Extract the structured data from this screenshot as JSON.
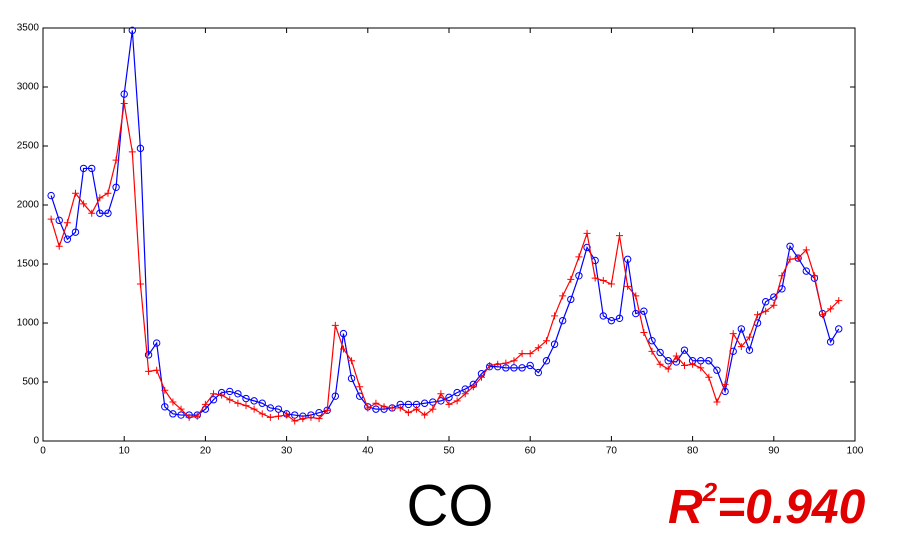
{
  "chart_data": {
    "type": "line",
    "x": [
      1,
      2,
      3,
      4,
      5,
      6,
      7,
      8,
      9,
      10,
      11,
      12,
      13,
      14,
      15,
      16,
      17,
      18,
      19,
      20,
      21,
      22,
      23,
      24,
      25,
      26,
      27,
      28,
      29,
      30,
      31,
      32,
      33,
      34,
      35,
      36,
      37,
      38,
      39,
      40,
      41,
      42,
      43,
      44,
      45,
      46,
      47,
      48,
      49,
      50,
      51,
      52,
      53,
      54,
      55,
      56,
      57,
      58,
      59,
      60,
      61,
      62,
      63,
      64,
      65,
      66,
      67,
      68,
      69,
      70,
      71,
      72,
      73,
      74,
      75,
      76,
      77,
      78,
      79,
      80,
      81,
      82,
      83,
      84,
      85,
      86,
      87,
      88,
      89,
      90,
      91,
      92,
      93,
      94,
      95,
      96,
      97,
      98
    ],
    "series": [
      {
        "color": "#0000ff",
        "marker": "circle",
        "values": [
          2080,
          1870,
          1710,
          1770,
          2310,
          2310,
          1930,
          1930,
          2150,
          2940,
          3480,
          2480,
          730,
          830,
          290,
          230,
          220,
          220,
          220,
          270,
          350,
          410,
          420,
          400,
          360,
          340,
          320,
          280,
          270,
          230,
          220,
          210,
          220,
          240,
          260,
          380,
          910,
          530,
          380,
          290,
          270,
          270,
          280,
          310,
          310,
          310,
          320,
          330,
          340,
          370,
          410,
          440,
          480,
          570,
          630,
          630,
          620,
          620,
          620,
          640,
          580,
          680,
          820,
          1020,
          1200,
          1400,
          1640,
          1530,
          1060,
          1020,
          1040,
          1540,
          1080,
          1100,
          850,
          750,
          680,
          670,
          770,
          680,
          680,
          680,
          600,
          420,
          760,
          950,
          770,
          1000,
          1180,
          1220,
          1290,
          1650,
          1550,
          1440,
          1380,
          1080,
          840,
          950
        ]
      },
      {
        "color": "#ff0000",
        "marker": "plus",
        "values": [
          1880,
          1650,
          1850,
          2100,
          2010,
          1930,
          2060,
          2100,
          2380,
          2860,
          2450,
          1330,
          590,
          600,
          430,
          330,
          270,
          200,
          210,
          310,
          400,
          390,
          350,
          320,
          300,
          270,
          230,
          200,
          210,
          220,
          170,
          190,
          200,
          190,
          260,
          980,
          780,
          680,
          460,
          280,
          320,
          290,
          280,
          280,
          240,
          270,
          220,
          270,
          400,
          310,
          340,
          400,
          460,
          540,
          640,
          650,
          660,
          680,
          740,
          740,
          790,
          850,
          1060,
          1230,
          1370,
          1560,
          1760,
          1380,
          1360,
          1330,
          1740,
          1310,
          1230,
          920,
          760,
          650,
          610,
          720,
          640,
          650,
          620,
          540,
          330,
          480,
          910,
          800,
          880,
          1070,
          1100,
          1150,
          1400,
          1540,
          1550,
          1620,
          1400,
          1070,
          1120,
          1190
        ]
      }
    ],
    "xlim": [
      0,
      100
    ],
    "xticks": [
      0,
      10,
      20,
      30,
      40,
      50,
      60,
      70,
      80,
      90,
      100
    ],
    "ylim": [
      0,
      3500
    ],
    "yticks": [
      0,
      500,
      1000,
      1500,
      2000,
      2500,
      3000,
      3500
    ],
    "title": "CO",
    "annotation": [
      "R",
      "2",
      "=0.940"
    ]
  }
}
